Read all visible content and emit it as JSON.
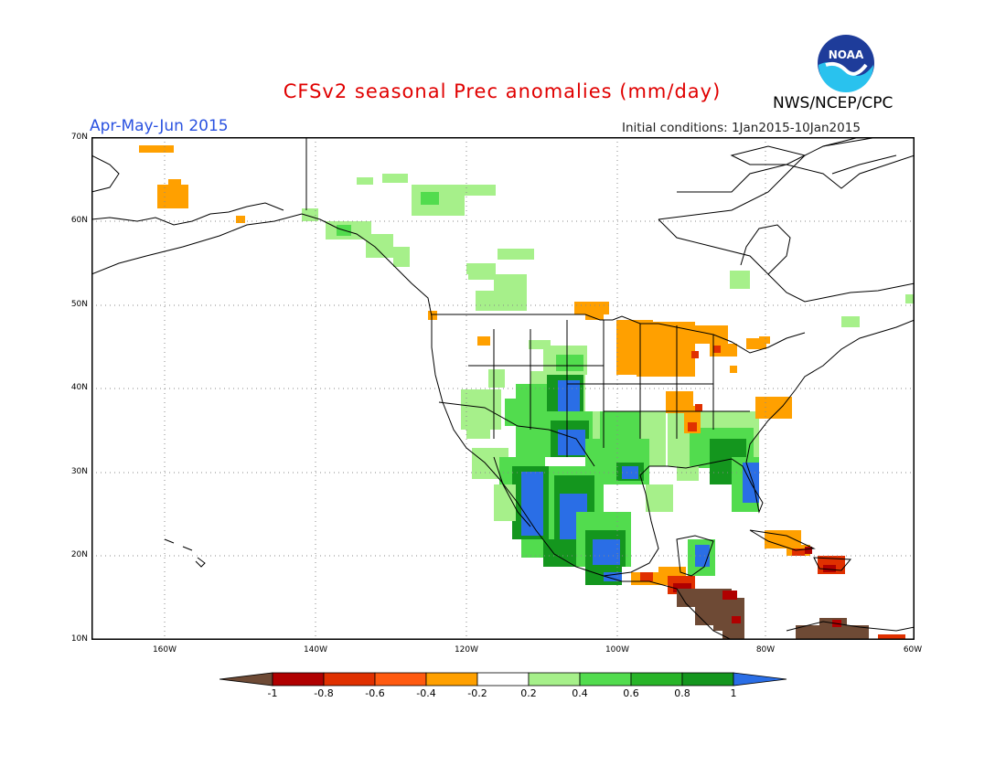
{
  "header": {
    "title": "CFSv2 seasonal Prec anomalies (mm/day)",
    "season": "Apr-May-Jun 2015",
    "initial_conditions": "Initial conditions: 1Jan2015-10Jan2015",
    "agency": "NWS/NCEP/CPC",
    "logo_text": "NOAA"
  },
  "map": {
    "lat_labels": [
      "70N",
      "60N",
      "50N",
      "40N",
      "30N",
      "20N",
      "10N"
    ],
    "lon_labels": [
      "160W",
      "140W",
      "120W",
      "100W",
      "80W",
      "60W"
    ]
  },
  "colorbar": {
    "labels": [
      "-1",
      "-0.8",
      "-0.6",
      "-0.4",
      "-0.2",
      "0.2",
      "0.4",
      "0.6",
      "0.8",
      "1"
    ],
    "colors": [
      "#6e4a35",
      "#b00000",
      "#e03000",
      "#ff5a10",
      "#ffa000",
      "#ffffff",
      "#a6f08a",
      "#52dc4e",
      "#28b428",
      "#14961e",
      "#2a6ee6"
    ]
  },
  "colors": {
    "title": "#e00000",
    "season": "#2a52e0",
    "very_dry": "#6e4a35",
    "dry_dark": "#b00000",
    "dry_red": "#e03000",
    "dry_orange": "#ffa000",
    "wet_light": "#a6f08a",
    "wet_mid": "#52dc4e",
    "wet_dark": "#14961e",
    "very_wet": "#2a6ee6"
  }
}
